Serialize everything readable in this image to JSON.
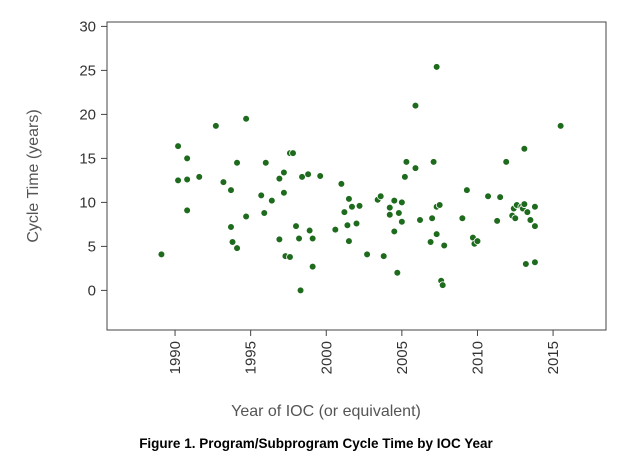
{
  "caption": "Figure 1. Program/Subprogram Cycle Time by IOC Year",
  "chart_data": {
    "type": "scatter",
    "xlabel": "Year of IOC (or equivalent)",
    "ylabel": "Cycle Time (years)",
    "xlim": [
      1985.5,
      2018.5
    ],
    "ylim": [
      -4.5,
      30.5
    ],
    "x_ticks": [
      1990,
      1995,
      2000,
      2005,
      2010,
      2015
    ],
    "y_ticks": [
      0,
      5,
      10,
      15,
      20,
      25,
      30
    ],
    "marker_color": "#1e6b1e",
    "grid": false,
    "series": [
      {
        "points": [
          [
            1989.1,
            4.1
          ],
          [
            1990.2,
            16.4
          ],
          [
            1990.2,
            12.5
          ],
          [
            1990.8,
            15.0
          ],
          [
            1990.8,
            12.6
          ],
          [
            1990.8,
            9.1
          ],
          [
            1991.6,
            12.9
          ],
          [
            1992.7,
            18.7
          ],
          [
            1993.2,
            12.3
          ],
          [
            1993.7,
            11.4
          ],
          [
            1993.7,
            7.2
          ],
          [
            1993.8,
            5.5
          ],
          [
            1994.1,
            14.5
          ],
          [
            1994.1,
            4.8
          ],
          [
            1994.7,
            19.5
          ],
          [
            1994.7,
            8.4
          ],
          [
            1995.7,
            10.8
          ],
          [
            1995.9,
            8.8
          ],
          [
            1996.0,
            14.5
          ],
          [
            1996.4,
            10.2
          ],
          [
            1996.9,
            12.7
          ],
          [
            1996.9,
            5.8
          ],
          [
            1997.2,
            13.4
          ],
          [
            1997.2,
            11.1
          ],
          [
            1997.3,
            3.9
          ],
          [
            1997.6,
            3.8
          ],
          [
            1997.6,
            15.6
          ],
          [
            1997.8,
            15.6
          ],
          [
            1998.0,
            7.3
          ],
          [
            1998.2,
            5.9
          ],
          [
            1998.3,
            0.0
          ],
          [
            1998.4,
            12.9
          ],
          [
            1998.8,
            13.2
          ],
          [
            1998.9,
            6.8
          ],
          [
            1999.1,
            5.9
          ],
          [
            1999.1,
            2.7
          ],
          [
            1999.6,
            13.0
          ],
          [
            2000.6,
            6.9
          ],
          [
            2001.0,
            12.1
          ],
          [
            2001.2,
            8.9
          ],
          [
            2001.4,
            7.4
          ],
          [
            2001.5,
            10.4
          ],
          [
            2001.5,
            5.6
          ],
          [
            2001.7,
            9.5
          ],
          [
            2002.0,
            7.6
          ],
          [
            2002.2,
            9.6
          ],
          [
            2002.7,
            4.1
          ],
          [
            2003.4,
            10.3
          ],
          [
            2003.6,
            10.7
          ],
          [
            2003.8,
            3.9
          ],
          [
            2004.2,
            9.4
          ],
          [
            2004.2,
            8.6
          ],
          [
            2004.5,
            10.2
          ],
          [
            2004.5,
            6.7
          ],
          [
            2004.7,
            2.0
          ],
          [
            2004.8,
            8.8
          ],
          [
            2005.0,
            10.0
          ],
          [
            2005.0,
            7.8
          ],
          [
            2005.2,
            12.9
          ],
          [
            2005.3,
            14.6
          ],
          [
            2005.9,
            21.0
          ],
          [
            2005.9,
            13.9
          ],
          [
            2006.2,
            8.0
          ],
          [
            2006.9,
            5.5
          ],
          [
            2007.0,
            8.2
          ],
          [
            2007.1,
            14.6
          ],
          [
            2007.3,
            25.4
          ],
          [
            2007.3,
            9.5
          ],
          [
            2007.3,
            6.4
          ],
          [
            2007.5,
            9.7
          ],
          [
            2007.6,
            1.1
          ],
          [
            2007.7,
            0.6
          ],
          [
            2007.8,
            5.1
          ],
          [
            2009.0,
            8.2
          ],
          [
            2009.3,
            11.4
          ],
          [
            2009.7,
            6.0
          ],
          [
            2009.8,
            5.3
          ],
          [
            2010.0,
            5.6
          ],
          [
            2010.7,
            10.7
          ],
          [
            2011.3,
            7.9
          ],
          [
            2011.5,
            10.6
          ],
          [
            2011.9,
            14.6
          ],
          [
            2012.3,
            8.5
          ],
          [
            2012.4,
            9.3
          ],
          [
            2012.5,
            8.2
          ],
          [
            2012.6,
            9.7
          ],
          [
            2012.9,
            9.5
          ],
          [
            2013.0,
            9.3
          ],
          [
            2013.1,
            9.8
          ],
          [
            2013.1,
            16.1
          ],
          [
            2013.2,
            3.0
          ],
          [
            2013.3,
            8.9
          ],
          [
            2013.5,
            8.0
          ],
          [
            2013.8,
            9.5
          ],
          [
            2013.8,
            7.3
          ],
          [
            2013.8,
            3.2
          ],
          [
            2015.5,
            18.7
          ]
        ]
      }
    ]
  }
}
